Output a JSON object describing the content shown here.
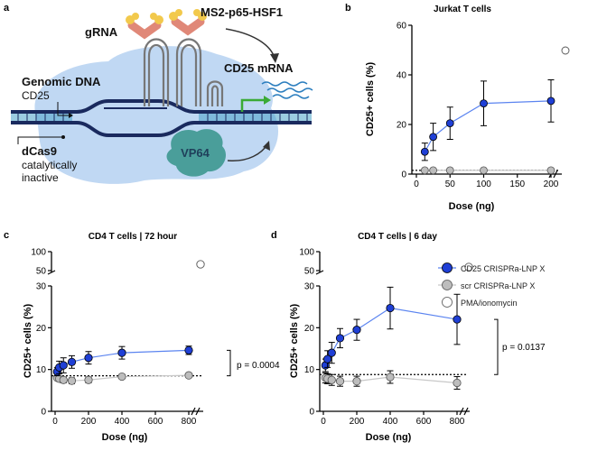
{
  "panel_labels": {
    "a": "a",
    "b": "b",
    "c": "c",
    "d": "d"
  },
  "schematic": {
    "genomic_dna": "Genomic DNA",
    "gene": "CD25",
    "grna": "gRNA",
    "activator": "MS2-p65-HSF1",
    "mrna": "CD25 mRNA",
    "dcas9": "dCas9",
    "dcas9_note_1": "catalytically",
    "dcas9_note_2": "inactive",
    "vp64": "VP64"
  },
  "legend": {
    "crispra": "CD25 CRISPRa-LNP X",
    "scr": "scr CRISPRa-LNP X",
    "pma": "PMA/ionomycin"
  },
  "colors": {
    "crispra": "#1f3fd6",
    "crispra_line": "#5b84f0",
    "scr": "#bdbdbd",
    "scr_line": "#c8c8c8",
    "dna_dark": "#1a2a5e",
    "dna_light": "#4aa3c8",
    "cas_blob": "#b9d4f2",
    "vp64": "#4a9e9a",
    "mrna": "#2d7fbf",
    "arrow": "#3aaa35"
  },
  "chart_data": [
    {
      "id": "b",
      "type": "line",
      "title": "Jurkat T cells",
      "xlabel": "Dose (ng)",
      "ylabel": "CD25+ cells (%)",
      "xlim": [
        0,
        200
      ],
      "ylim": [
        0,
        60
      ],
      "xticks": [
        "0",
        "50",
        "100",
        "150",
        "200"
      ],
      "yticks": [
        "0",
        "20",
        "40",
        "60"
      ],
      "series": [
        {
          "name": "CD25 CRISPRa-LNP X",
          "x": [
            12.5,
            25,
            50,
            100,
            200
          ],
          "y": [
            9,
            15,
            20.5,
            28.5,
            29.5
          ],
          "err": [
            3.5,
            5.5,
            6.5,
            9,
            8.5
          ]
        },
        {
          "name": "scr CRISPRa-LNP X",
          "x": [
            12.5,
            25,
            50,
            100,
            200
          ],
          "y": [
            1.5,
            1.5,
            1.5,
            1.5,
            1.5
          ],
          "err": [
            0,
            0,
            0,
            0,
            0
          ]
        }
      ],
      "baseline": 1.5,
      "pma_value": 50
    },
    {
      "id": "c",
      "type": "line",
      "title": "CD4 T cells | 72 hour",
      "xlabel": "Dose (ng)",
      "ylabel": "CD25+ cells (%)",
      "xlim": [
        0,
        800
      ],
      "ylim": [
        0,
        30
      ],
      "xticks": [
        "0",
        "200",
        "400",
        "600",
        "800"
      ],
      "yticks": [
        "0",
        "10",
        "20",
        "30"
      ],
      "upper_ticks": [
        "50",
        "100"
      ],
      "series": [
        {
          "name": "CD25 CRISPRa-LNP X",
          "x": [
            12.5,
            25,
            50,
            100,
            200,
            400,
            800
          ],
          "y": [
            9.5,
            10.5,
            11,
            11.8,
            12.8,
            14,
            14.6
          ],
          "err": [
            1,
            1.5,
            1.8,
            1.5,
            1.5,
            1.5,
            1
          ]
        },
        {
          "name": "scr CRISPRa-LNP X",
          "x": [
            12.5,
            25,
            50,
            100,
            200,
            400,
            800
          ],
          "y": [
            8,
            7.8,
            7.5,
            7.3,
            7.5,
            8.3,
            8.6
          ],
          "err": [
            0.5,
            0.6,
            0.7,
            0.7,
            0.7,
            0.5,
            0.4
          ]
        }
      ],
      "baseline": 8.5,
      "pma_value": 85,
      "pvalue": "p = 0.0004"
    },
    {
      "id": "d",
      "type": "line",
      "title": "CD4 T cells | 6 day",
      "xlabel": "Dose (ng)",
      "ylabel": "CD25+ cells (%)",
      "xlim": [
        0,
        800
      ],
      "ylim": [
        0,
        30
      ],
      "xticks": [
        "0",
        "200",
        "400",
        "600",
        "800"
      ],
      "yticks": [
        "0",
        "10",
        "20",
        "30"
      ],
      "upper_ticks": [
        "50",
        "100"
      ],
      "series": [
        {
          "name": "CD25 CRISPRa-LNP X",
          "x": [
            12.5,
            25,
            50,
            100,
            200,
            400,
            800
          ],
          "y": [
            11,
            12.5,
            14,
            17.5,
            19.5,
            24.7,
            22
          ],
          "err": [
            1.5,
            2,
            2.5,
            2.3,
            2.5,
            5,
            6
          ]
        },
        {
          "name": "scr CRISPRa-LNP X",
          "x": [
            12.5,
            25,
            50,
            100,
            200,
            400,
            800
          ],
          "y": [
            8,
            7.8,
            7.5,
            7.2,
            7.2,
            8.2,
            6.8
          ],
          "err": [
            1.2,
            1.2,
            1.3,
            1.2,
            1.2,
            1.5,
            1.5
          ]
        }
      ],
      "baseline": 8.8,
      "pma_value": 85,
      "pvalue": "p = 0.0137"
    }
  ]
}
